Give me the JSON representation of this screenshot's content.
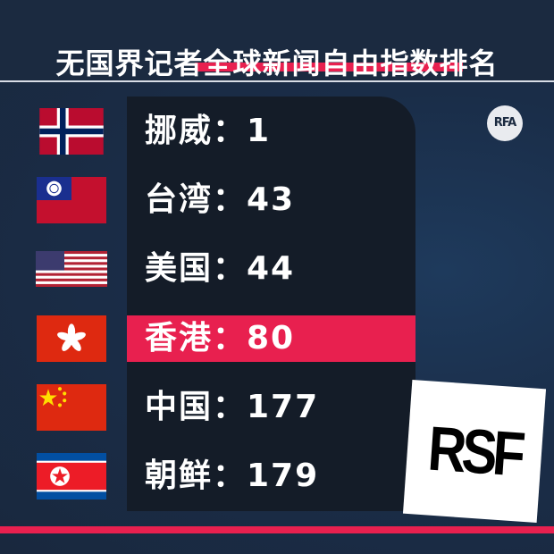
{
  "title": "无国界记者全球新闻自由指数排名",
  "accent_color": "#e8204f",
  "background_color": "#1b2a40",
  "logos": {
    "rfa": "RFA",
    "rsf": "RSF"
  },
  "rankings": [
    {
      "label": "挪威：1",
      "country": "挪威",
      "rank": 1,
      "flag": "norway-flag"
    },
    {
      "label": "台湾：43",
      "country": "台湾",
      "rank": 43,
      "flag": "taiwan-flag"
    },
    {
      "label": "美国：44",
      "country": "美国",
      "rank": 44,
      "flag": "usa-flag"
    },
    {
      "label": "香港：80",
      "country": "香港",
      "rank": 80,
      "flag": "hong-kong-flag",
      "highlighted": true
    },
    {
      "label": "中国：177",
      "country": "中国",
      "rank": 177,
      "flag": "china-flag"
    },
    {
      "label": "朝鲜：179",
      "country": "朝鲜",
      "rank": 179,
      "flag": "north-korea-flag"
    }
  ]
}
